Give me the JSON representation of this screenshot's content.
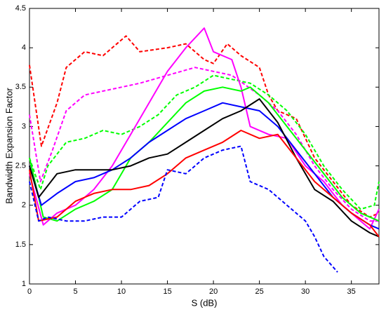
{
  "chart_data": {
    "type": "line",
    "xlabel": "S (dB)",
    "ylabel": "Bandwidth Expansion Factor",
    "xlim": [
      0,
      38
    ],
    "xticks": [
      0,
      5,
      10,
      15,
      20,
      25,
      30,
      35
    ],
    "ylim": [
      1,
      4.5
    ],
    "yticks": [
      1,
      1.5,
      2,
      2.5,
      3,
      3.5,
      4,
      4.5
    ],
    "grid": false,
    "series": [
      {
        "color": "#ff0000",
        "dash": true,
        "x": [
          0,
          1.3,
          3,
          4,
          6,
          8,
          9,
          10.5,
          12,
          15,
          17,
          19,
          20,
          21.5,
          23,
          25,
          26,
          27,
          29,
          31,
          33,
          35,
          37,
          38
        ],
        "values": [
          3.78,
          2.75,
          3.3,
          3.75,
          3.95,
          3.9,
          4.0,
          4.15,
          3.95,
          4.0,
          4.05,
          3.85,
          3.8,
          4.05,
          3.9,
          3.75,
          3.4,
          3.2,
          3.1,
          2.6,
          2.3,
          2.0,
          1.85,
          1.9
        ]
      },
      {
        "color": "#ff00ff",
        "dash": true,
        "x": [
          0,
          1.2,
          2.5,
          4,
          6,
          8,
          10,
          12,
          15,
          18,
          20,
          22,
          25,
          27,
          29,
          31,
          33,
          35,
          37,
          38
        ],
        "values": [
          3.15,
          2.3,
          2.7,
          3.2,
          3.4,
          3.45,
          3.5,
          3.55,
          3.65,
          3.75,
          3.7,
          3.65,
          3.4,
          3.2,
          2.9,
          2.5,
          2.2,
          1.95,
          1.8,
          1.8
        ]
      },
      {
        "color": "#00ff00",
        "dash": true,
        "x": [
          0,
          1.2,
          2,
          4,
          6,
          8,
          10,
          12,
          14,
          16,
          18,
          20,
          22,
          24,
          26,
          28,
          30,
          32,
          34,
          36,
          37.5,
          38
        ],
        "values": [
          2.6,
          2.2,
          2.5,
          2.8,
          2.85,
          2.95,
          2.9,
          3.0,
          3.15,
          3.4,
          3.5,
          3.65,
          3.6,
          3.55,
          3.4,
          3.2,
          2.9,
          2.5,
          2.2,
          1.95,
          2.0,
          2.3
        ]
      },
      {
        "color": "#ff00ff",
        "dash": false,
        "x": [
          0,
          1.5,
          3,
          5,
          7,
          9,
          11,
          13,
          15,
          17,
          19,
          20,
          22,
          23,
          24,
          26,
          28,
          30,
          32,
          34,
          36,
          37,
          38
        ],
        "values": [
          2.4,
          1.75,
          1.9,
          2.0,
          2.2,
          2.5,
          2.9,
          3.3,
          3.7,
          4.0,
          4.25,
          3.95,
          3.85,
          3.5,
          3.0,
          2.9,
          2.85,
          2.5,
          2.3,
          2.0,
          1.8,
          1.7,
          1.95
        ]
      },
      {
        "color": "#00ff00",
        "dash": false,
        "x": [
          0,
          1.5,
          3,
          5,
          7,
          9,
          11,
          13,
          15,
          17,
          19,
          21,
          23,
          24,
          26,
          28,
          30,
          32,
          34,
          36,
          38
        ],
        "values": [
          2.6,
          1.85,
          1.8,
          1.95,
          2.05,
          2.2,
          2.6,
          2.8,
          3.05,
          3.3,
          3.45,
          3.5,
          3.45,
          3.5,
          3.3,
          3.0,
          2.7,
          2.4,
          2.1,
          1.9,
          1.8
        ]
      },
      {
        "color": "#0000ff",
        "dash": false,
        "x": [
          0,
          1.3,
          3,
          5,
          7,
          9,
          11,
          13,
          15,
          17,
          19,
          21,
          23,
          25,
          27,
          29,
          31,
          33,
          35,
          37,
          38
        ],
        "values": [
          2.5,
          2.0,
          2.15,
          2.3,
          2.35,
          2.45,
          2.6,
          2.8,
          2.95,
          3.1,
          3.2,
          3.3,
          3.25,
          3.2,
          3.0,
          2.7,
          2.4,
          2.1,
          1.9,
          1.75,
          1.7
        ]
      },
      {
        "color": "#000000",
        "dash": false,
        "x": [
          0,
          1,
          3,
          5,
          7,
          9,
          11,
          13,
          15,
          17,
          19,
          21,
          23,
          25,
          27,
          29,
          31,
          33,
          35,
          37,
          38
        ],
        "values": [
          2.5,
          2.1,
          2.4,
          2.45,
          2.45,
          2.45,
          2.5,
          2.6,
          2.65,
          2.8,
          2.95,
          3.1,
          3.2,
          3.35,
          3.05,
          2.6,
          2.2,
          2.05,
          1.8,
          1.65,
          1.6
        ]
      },
      {
        "color": "#ff0000",
        "dash": false,
        "x": [
          0,
          1,
          3,
          5,
          7,
          9,
          11,
          13,
          15,
          17,
          19,
          21,
          23,
          25,
          27,
          29,
          31,
          33,
          35,
          37,
          38
        ],
        "values": [
          2.45,
          1.8,
          1.85,
          2.05,
          2.15,
          2.2,
          2.2,
          2.25,
          2.4,
          2.6,
          2.7,
          2.8,
          2.95,
          2.85,
          2.9,
          2.6,
          2.3,
          2.1,
          1.9,
          1.75,
          1.6
        ]
      },
      {
        "color": "#0000ff",
        "dash": true,
        "x": [
          0,
          1,
          2,
          4,
          6,
          8,
          10,
          12,
          14,
          15,
          17,
          19,
          21,
          23,
          24,
          26,
          28,
          30,
          31,
          32,
          33.5
        ],
        "values": [
          2.3,
          1.8,
          1.85,
          1.8,
          1.8,
          1.85,
          1.85,
          2.05,
          2.1,
          2.45,
          2.4,
          2.6,
          2.7,
          2.75,
          2.3,
          2.2,
          2.0,
          1.8,
          1.6,
          1.35,
          1.15
        ]
      }
    ]
  }
}
